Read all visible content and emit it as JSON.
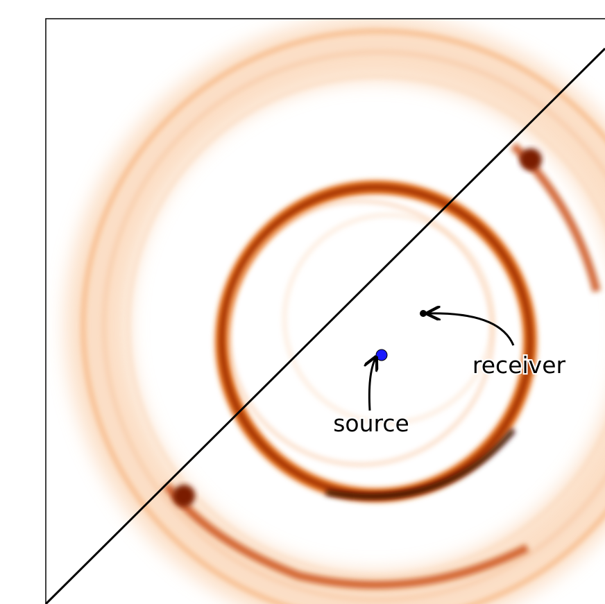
{
  "annotations": {
    "source": "source",
    "receiver": "receiver"
  }
}
